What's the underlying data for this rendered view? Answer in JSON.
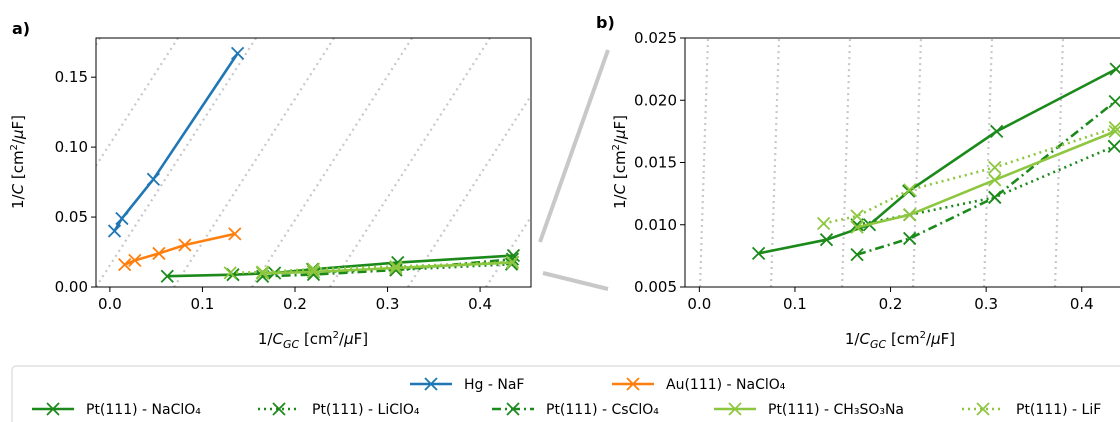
{
  "chart_data": [
    {
      "panel": "a)",
      "type": "line",
      "xlabel": "1/C_GC [cm²/μF]",
      "ylabel": "1/C [cm²/μF]",
      "xlim": [
        -0.015,
        0.455
      ],
      "ylim": [
        0.0,
        0.178
      ],
      "xticks": [
        "0.0",
        "0.1",
        "0.2",
        "0.3",
        "0.4"
      ],
      "yticks": [
        "0.00",
        "0.05",
        "0.10",
        "0.15"
      ],
      "background_lines": "dotted grey diagonal guide lines",
      "series": [
        {
          "name": "Hg - NaF",
          "color": "#1f77b4",
          "style": "solid",
          "x": [
            0.005,
            0.013,
            0.047,
            0.138
          ],
          "y": [
            0.04,
            0.049,
            0.077,
            0.167
          ]
        },
        {
          "name": "Au(111) - NaClO₄",
          "color": "#ff7f0e",
          "style": "solid",
          "x": [
            0.016,
            0.027,
            0.053,
            0.081,
            0.135
          ],
          "y": [
            0.016,
            0.019,
            0.024,
            0.03,
            0.038
          ]
        },
        {
          "name": "Pt(111) - NaClO₄",
          "color": "#1b8a1b",
          "style": "solid",
          "x": [
            0.062,
            0.133,
            0.178,
            0.219,
            0.311,
            0.436
          ],
          "y": [
            0.0077,
            0.0088,
            0.01,
            0.0127,
            0.0175,
            0.0225
          ]
        },
        {
          "name": "Pt(111) - LiClO₄",
          "color": "#1b8a1b",
          "style": "dotted",
          "x": [
            0.165,
            0.22,
            0.309,
            0.434
          ],
          "y": [
            0.01,
            0.0108,
            0.0122,
            0.0163
          ]
        },
        {
          "name": "Pt(111) - CsClO₄",
          "color": "#1b8a1b",
          "style": "dashdot",
          "x": [
            0.165,
            0.22,
            0.309,
            0.435
          ],
          "y": [
            0.0076,
            0.0089,
            0.0122,
            0.0199
          ]
        },
        {
          "name": "Pt(111) - CH₃SO₃Na",
          "color": "#8dc63f",
          "style": "solid",
          "x": [
            0.165,
            0.22,
            0.309,
            0.435
          ],
          "y": [
            0.0098,
            0.0108,
            0.0136,
            0.0175
          ]
        },
        {
          "name": "Pt(111) - LiF",
          "color": "#8dc63f",
          "style": "dotted",
          "x": [
            0.13,
            0.165,
            0.22,
            0.309,
            0.435
          ],
          "y": [
            0.0101,
            0.0107,
            0.0128,
            0.0146,
            0.0178
          ]
        }
      ]
    },
    {
      "panel": "b)",
      "type": "line",
      "xlabel": "1/C_GC [cm²/μF]",
      "ylabel": "1/C [cm²/μF]",
      "xlim": [
        -0.015,
        0.44
      ],
      "ylim": [
        0.005,
        0.025
      ],
      "xticks": [
        "0.0",
        "0.1",
        "0.2",
        "0.3",
        "0.4"
      ],
      "yticks": [
        "0.005",
        "0.010",
        "0.015",
        "0.020",
        "0.025"
      ],
      "background_lines": "dotted grey near-vertical guide lines",
      "series_ref": "Pt(111) series of panel a) (zoomed view)"
    }
  ],
  "legend": {
    "row1": [
      {
        "id": "hg",
        "label": "Hg - NaF"
      },
      {
        "id": "au",
        "label": "Au(111) - NaClO₄"
      }
    ],
    "row2": [
      {
        "id": "pt_naclo4",
        "label": "Pt(111) - NaClO₄"
      },
      {
        "id": "pt_liclo4",
        "label": "Pt(111) - LiClO₄"
      },
      {
        "id": "pt_csclo4",
        "label": "Pt(111) - CsClO₄"
      },
      {
        "id": "pt_ch3so3na",
        "label": "Pt(111) - CH₃SO₃Na"
      },
      {
        "id": "pt_lif",
        "label": "Pt(111) - LiF"
      }
    ]
  }
}
